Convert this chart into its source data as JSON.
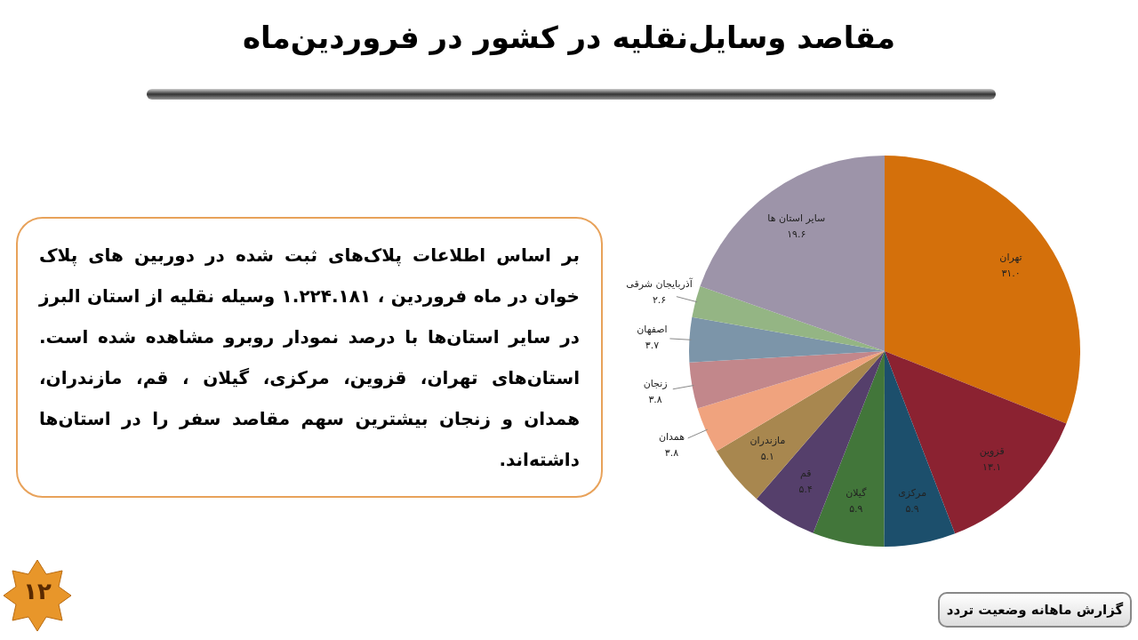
{
  "chart_data": {
    "type": "pie",
    "title": "مقاصد وسایل‌نقلیه در کشور در فروردین‌ماه",
    "categories": [
      "تهران",
      "قزوین",
      "مرکزی",
      "گیلان",
      "قم",
      "مازندران",
      "همدان",
      "زنجان",
      "اصفهان",
      "آذربایجان شرقی",
      "سایر استان ها"
    ],
    "values": [
      31.0,
      13.1,
      5.9,
      5.9,
      5.4,
      5.1,
      3.8,
      3.8,
      3.7,
      2.6,
      19.6
    ],
    "value_labels": [
      "۳۱.۰",
      "۱۳.۱",
      "۵.۹",
      "۵.۹",
      "۵.۴",
      "۵.۱",
      "۳.۸",
      "۳.۸",
      "۳.۷",
      "۲.۶",
      "۱۹.۶"
    ],
    "colors": [
      "#d4700b",
      "#8b2231",
      "#1c4f6c",
      "#42763a",
      "#553f6b",
      "#a8874f",
      "#f0a37e",
      "#c2878b",
      "#7c95a9",
      "#94b584",
      "#9d94a9"
    ],
    "annotations": [
      "بر اساس اطلاعات پلاک‌های ثبت شده در دوربین های پلاک خوان در ماه فروردین ، ۱.۲۲۴.۱۸۱ وسیله نقلیه از استان البرز در سایر استان‌ها با درصد نمودار روبرو مشاهده شده است. استان‌های تهران، قزوین، مرکزی، گیلان ، قم، مازندران، همدان و زنجان بیشترین سهم مقاصد سفر را در استان‌ها داشته‌اند.",
      "۱۲",
      "گزارش ماهانه وضعیت تردد"
    ]
  }
}
